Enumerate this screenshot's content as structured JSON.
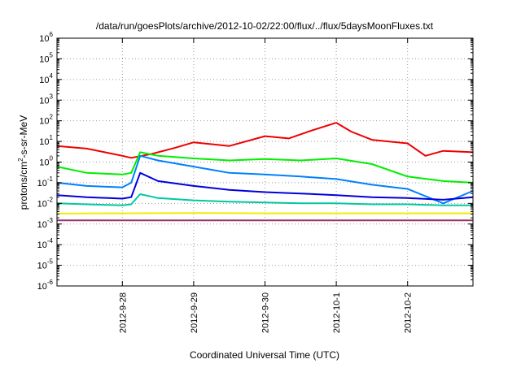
{
  "chart_data": {
    "type": "line",
    "title": "/data/run/goesPlots/archive/2012-10-02/22:00/flux/../flux/5daysMoonFluxes.txt",
    "xlabel": "Coordinated Universal Time (UTC)",
    "ylabel": {
      "pre": "protons/cm",
      "sup": "2",
      "post": "-s-sr-MeV"
    },
    "yscale": "log",
    "ylim_exponents": [
      -6,
      6
    ],
    "y_tick_exponents": [
      -6,
      -5,
      -4,
      -3,
      -2,
      -1,
      0,
      1,
      2,
      3,
      4,
      5,
      6
    ],
    "y_tick_base": "10",
    "x_range_days": [
      "2012-09-27 02:00",
      "2012-10-02 22:00"
    ],
    "x_ticks": [
      "2012-9-28",
      "2012-9-29",
      "2012-9-30",
      "2012-10-1",
      "2012-10-2"
    ],
    "grid": true,
    "legend": "none",
    "series": [
      {
        "color": "#ee0000",
        "x": [
          "2012-09-27 02:00",
          "2012-09-27 12:00",
          "2012-09-28 00:00",
          "2012-09-28 03:00",
          "2012-09-28 10:00",
          "2012-09-28 18:00",
          "2012-09-29 00:00",
          "2012-09-29 12:00",
          "2012-09-30 00:00",
          "2012-09-30 08:00",
          "2012-09-30 16:00",
          "2012-10-01 00:00",
          "2012-10-01 05:00",
          "2012-10-01 12:00",
          "2012-10-02 00:00",
          "2012-10-02 06:00",
          "2012-10-02 12:00",
          "2012-10-02 22:00"
        ],
        "y": [
          6,
          4.5,
          2,
          1.6,
          2.5,
          5,
          9,
          6,
          18,
          14,
          35,
          80,
          30,
          12,
          8,
          2,
          3.5,
          3
        ]
      },
      {
        "color": "#00ee00",
        "x": [
          "2012-09-27 02:00",
          "2012-09-27 12:00",
          "2012-09-28 00:00",
          "2012-09-28 03:00",
          "2012-09-28 06:00",
          "2012-09-28 12:00",
          "2012-09-29 00:00",
          "2012-09-29 12:00",
          "2012-09-30 00:00",
          "2012-09-30 12:00",
          "2012-10-01 00:00",
          "2012-10-01 12:00",
          "2012-10-02 00:00",
          "2012-10-02 12:00",
          "2012-10-02 22:00"
        ],
        "y": [
          0.6,
          0.3,
          0.25,
          0.3,
          3,
          2,
          1.5,
          1.2,
          1.4,
          1.2,
          1.5,
          0.8,
          0.2,
          0.12,
          0.1
        ]
      },
      {
        "color": "#0080ff",
        "x": [
          "2012-09-27 02:00",
          "2012-09-27 12:00",
          "2012-09-28 00:00",
          "2012-09-28 03:00",
          "2012-09-28 06:00",
          "2012-09-28 12:00",
          "2012-09-29 00:00",
          "2012-09-29 12:00",
          "2012-09-30 00:00",
          "2012-09-30 12:00",
          "2012-10-01 00:00",
          "2012-10-01 12:00",
          "2012-10-02 00:00",
          "2012-10-02 12:00",
          "2012-10-02 22:00"
        ],
        "y": [
          0.1,
          0.07,
          0.06,
          0.1,
          2,
          1.2,
          0.6,
          0.3,
          0.25,
          0.2,
          0.15,
          0.08,
          0.05,
          0.01,
          0.04
        ]
      },
      {
        "color": "#0000dd",
        "x": [
          "2012-09-27 02:00",
          "2012-09-27 12:00",
          "2012-09-28 00:00",
          "2012-09-28 03:00",
          "2012-09-28 06:00",
          "2012-09-28 12:00",
          "2012-09-29 00:00",
          "2012-09-29 12:00",
          "2012-09-30 00:00",
          "2012-09-30 12:00",
          "2012-10-01 00:00",
          "2012-10-01 12:00",
          "2012-10-02 00:00",
          "2012-10-02 12:00",
          "2012-10-02 22:00"
        ],
        "y": [
          0.025,
          0.02,
          0.017,
          0.02,
          0.3,
          0.12,
          0.07,
          0.045,
          0.035,
          0.03,
          0.025,
          0.02,
          0.018,
          0.015,
          0.02
        ]
      },
      {
        "color": "#00c8a0",
        "x": [
          "2012-09-27 02:00",
          "2012-09-27 12:00",
          "2012-09-28 00:00",
          "2012-09-28 03:00",
          "2012-09-28 06:00",
          "2012-09-28 12:00",
          "2012-09-29 00:00",
          "2012-09-29 12:00",
          "2012-09-30 00:00",
          "2012-09-30 12:00",
          "2012-10-01 00:00",
          "2012-10-01 12:00",
          "2012-10-02 00:00",
          "2012-10-02 12:00",
          "2012-10-02 22:00"
        ],
        "y": [
          0.01,
          0.009,
          0.008,
          0.009,
          0.028,
          0.018,
          0.014,
          0.012,
          0.011,
          0.01,
          0.01,
          0.009,
          0.009,
          0.008,
          0.008
        ]
      },
      {
        "color": "#eeee00",
        "x": [
          "2012-09-27 02:00",
          "2012-09-28 00:00",
          "2012-09-29 00:00",
          "2012-09-30 00:00",
          "2012-10-01 00:00",
          "2012-10-02 00:00",
          "2012-10-02 22:00"
        ],
        "y": [
          0.0032,
          0.0033,
          0.0034,
          0.0033,
          0.0033,
          0.0033,
          0.0033
        ]
      },
      {
        "color": "#993366",
        "x": [
          "2012-09-27 02:00",
          "2012-09-28 00:00",
          "2012-09-29 00:00",
          "2012-09-30 00:00",
          "2012-10-01 00:00",
          "2012-10-02 00:00",
          "2012-10-02 22:00"
        ],
        "y": [
          0.0015,
          0.0015,
          0.0015,
          0.0015,
          0.0015,
          0.0015,
          0.0015
        ]
      }
    ]
  }
}
